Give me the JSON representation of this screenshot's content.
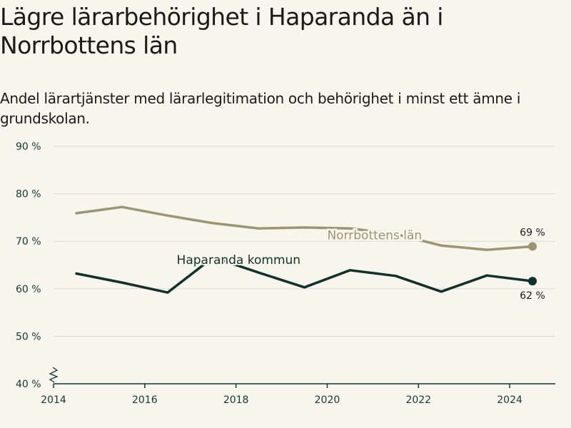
{
  "title": "Lägre lärarbehörighet i Haparanda än i Norrbottens län",
  "subtitle": "Andel lärartjänster med lärarlegitimation och behörighet i minst ett ämne i grundskolan.",
  "chart_data": {
    "type": "line",
    "y_tick_labels": [
      "90 %",
      "80 %",
      "70 %",
      "60 %",
      "50 %",
      "40 %"
    ],
    "y_ticks": [
      90,
      80,
      70,
      60,
      50,
      40
    ],
    "ylim": [
      40,
      90
    ],
    "x_tick_labels": [
      "2014",
      "2016",
      "2018",
      "2020",
      "2022",
      "2024"
    ],
    "x_ticks": [
      2014,
      2016,
      2018,
      2020,
      2022,
      2024
    ],
    "xlim": [
      2014,
      2025
    ],
    "grid": true,
    "axis_break": true,
    "series": [
      {
        "name": "Norrbottens län",
        "color": "#9c9670",
        "x": [
          2014.5,
          2015.5,
          2016.5,
          2017.5,
          2018.5,
          2019.5,
          2020.5,
          2021.5,
          2022.5,
          2023.5,
          2024.5
        ],
        "values": [
          75.9,
          77.2,
          75.4,
          73.8,
          72.7,
          72.9,
          72.7,
          71.5,
          69.1,
          68.2,
          68.9
        ],
        "end_label": "69 %"
      },
      {
        "name": "Haparanda kommun",
        "color": "#0d332c",
        "x": [
          2014.5,
          2015.5,
          2016.5,
          2017.5,
          2018.5,
          2019.5,
          2020.5,
          2021.5,
          2022.5,
          2023.5,
          2024.5
        ],
        "values": [
          63.2,
          61.3,
          59.2,
          66.6,
          63.4,
          60.3,
          63.9,
          62.7,
          59.4,
          62.8,
          61.6
        ],
        "end_label": "62 %"
      }
    ]
  }
}
